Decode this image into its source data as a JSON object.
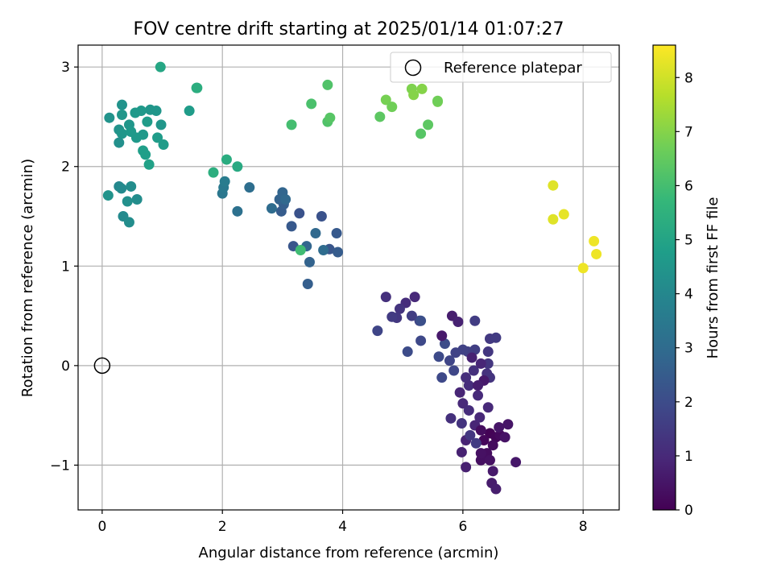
{
  "chart_data": {
    "type": "scatter",
    "title": "FOV centre drift starting at 2025/01/14 01:07:27",
    "xlabel": "Angular distance from reference (arcmin)",
    "ylabel": "Rotation from reference (arcmin)",
    "xlim": [
      -0.4,
      8.6
    ],
    "ylim": [
      -1.45,
      3.22
    ],
    "xticks": [
      0,
      2,
      4,
      6,
      8
    ],
    "xtick_labels": [
      "0",
      "2",
      "4",
      "6",
      "8"
    ],
    "yticks": [
      -1,
      0,
      1,
      2,
      3
    ],
    "ytick_labels": [
      "−1",
      "0",
      "1",
      "2",
      "3"
    ],
    "grid": true,
    "legend": {
      "position": "upper-right",
      "entries": [
        {
          "label": "Reference platepar",
          "marker": "hollow-circle",
          "color": "#000000"
        }
      ]
    },
    "reference_point": {
      "x": 0,
      "y": 0
    },
    "colorbar": {
      "label": "Hours from first FF file",
      "colormap": "viridis",
      "range": [
        0,
        8.6
      ],
      "ticks": [
        0,
        1,
        2,
        3,
        4,
        5,
        6,
        7,
        8
      ],
      "tick_labels": [
        "0",
        "1",
        "2",
        "3",
        "4",
        "5",
        "6",
        "7",
        "8"
      ]
    },
    "colormap_stops": [
      "#440154",
      "#482878",
      "#3e4989",
      "#31688e",
      "#26828e",
      "#1f9e89",
      "#35b779",
      "#6ece58",
      "#b5de2b",
      "#fde725"
    ],
    "points": [
      {
        "x": 6.45,
        "y": -0.68,
        "c": 0.05
      },
      {
        "x": 6.55,
        "y": -0.72,
        "c": 0.1
      },
      {
        "x": 6.35,
        "y": -0.75,
        "c": 0.15
      },
      {
        "x": 6.62,
        "y": -0.7,
        "c": 0.2
      },
      {
        "x": 6.5,
        "y": -0.8,
        "c": 0.25
      },
      {
        "x": 6.4,
        "y": -0.88,
        "c": 0.3
      },
      {
        "x": 6.3,
        "y": -0.95,
        "c": 0.35
      },
      {
        "x": 6.45,
        "y": -0.95,
        "c": 0.4
      },
      {
        "x": 6.7,
        "y": -0.72,
        "c": 0.45
      },
      {
        "x": 6.75,
        "y": -0.59,
        "c": 0.5
      },
      {
        "x": 6.88,
        "y": -0.97,
        "c": 0.55
      },
      {
        "x": 6.5,
        "y": -1.06,
        "c": 0.6
      },
      {
        "x": 6.48,
        "y": -1.18,
        "c": 0.65
      },
      {
        "x": 6.55,
        "y": -1.24,
        "c": 0.7
      },
      {
        "x": 6.05,
        "y": -1.02,
        "c": 0.75
      },
      {
        "x": 5.98,
        "y": -0.87,
        "c": 0.8
      },
      {
        "x": 6.05,
        "y": -0.75,
        "c": 0.85
      },
      {
        "x": 6.2,
        "y": -0.6,
        "c": 0.9
      },
      {
        "x": 6.28,
        "y": -0.52,
        "c": 0.95
      },
      {
        "x": 6.42,
        "y": -0.42,
        "c": 1.0
      },
      {
        "x": 6.25,
        "y": -0.3,
        "c": 1.05
      },
      {
        "x": 6.1,
        "y": -0.2,
        "c": 1.1
      },
      {
        "x": 6.05,
        "y": -0.12,
        "c": 1.15
      },
      {
        "x": 6.18,
        "y": -0.05,
        "c": 1.2
      },
      {
        "x": 6.4,
        "y": -0.08,
        "c": 1.25
      },
      {
        "x": 6.45,
        "y": -0.12,
        "c": 1.3
      },
      {
        "x": 6.42,
        "y": 0.02,
        "c": 1.35
      },
      {
        "x": 6.42,
        "y": 0.14,
        "c": 1.4
      },
      {
        "x": 6.45,
        "y": 0.27,
        "c": 1.45
      },
      {
        "x": 6.55,
        "y": 0.28,
        "c": 1.5
      },
      {
        "x": 6.2,
        "y": 0.45,
        "c": 1.55
      },
      {
        "x": 6.2,
        "y": 0.16,
        "c": 1.6
      },
      {
        "x": 6.08,
        "y": 0.14,
        "c": 1.65
      },
      {
        "x": 6.0,
        "y": 0.16,
        "c": 1.7
      },
      {
        "x": 5.88,
        "y": 0.13,
        "c": 1.75
      },
      {
        "x": 5.78,
        "y": 0.05,
        "c": 1.8
      },
      {
        "x": 5.85,
        "y": -0.05,
        "c": 1.85
      },
      {
        "x": 5.65,
        "y": -0.12,
        "c": 1.9
      },
      {
        "x": 5.6,
        "y": 0.09,
        "c": 1.95
      },
      {
        "x": 5.7,
        "y": 0.22,
        "c": 2.0
      },
      {
        "x": 5.65,
        "y": 0.3,
        "c": 0.6
      },
      {
        "x": 5.82,
        "y": 0.5,
        "c": 0.7
      },
      {
        "x": 5.92,
        "y": 0.44,
        "c": 0.8
      },
      {
        "x": 5.95,
        "y": -0.27,
        "c": 0.9
      },
      {
        "x": 6.0,
        "y": -0.38,
        "c": 1.0
      },
      {
        "x": 6.1,
        "y": -0.45,
        "c": 1.1
      },
      {
        "x": 5.8,
        "y": -0.53,
        "c": 1.2
      },
      {
        "x": 5.98,
        "y": -0.58,
        "c": 1.3
      },
      {
        "x": 6.12,
        "y": -0.7,
        "c": 1.4
      },
      {
        "x": 6.22,
        "y": -0.78,
        "c": 1.5
      },
      {
        "x": 6.3,
        "y": -0.65,
        "c": 0.3
      },
      {
        "x": 6.3,
        "y": -0.88,
        "c": 0.4
      },
      {
        "x": 6.6,
        "y": -0.62,
        "c": 0.5
      },
      {
        "x": 6.35,
        "y": -0.15,
        "c": 0.6
      },
      {
        "x": 6.25,
        "y": -0.2,
        "c": 0.7
      },
      {
        "x": 6.15,
        "y": 0.08,
        "c": 0.8
      },
      {
        "x": 6.3,
        "y": 0.02,
        "c": 0.9
      },
      {
        "x": 5.2,
        "y": 0.69,
        "c": 1.0
      },
      {
        "x": 5.05,
        "y": 0.63,
        "c": 1.1
      },
      {
        "x": 4.72,
        "y": 0.69,
        "c": 1.2
      },
      {
        "x": 4.95,
        "y": 0.57,
        "c": 1.3
      },
      {
        "x": 4.9,
        "y": 0.48,
        "c": 1.4
      },
      {
        "x": 4.82,
        "y": 0.49,
        "c": 1.5
      },
      {
        "x": 5.15,
        "y": 0.5,
        "c": 1.6
      },
      {
        "x": 5.28,
        "y": 0.45,
        "c": 1.7
      },
      {
        "x": 4.58,
        "y": 0.35,
        "c": 1.8
      },
      {
        "x": 5.3,
        "y": 0.25,
        "c": 1.9
      },
      {
        "x": 5.08,
        "y": 0.14,
        "c": 2.0
      },
      {
        "x": 5.3,
        "y": 0.45,
        "c": 2.1
      },
      {
        "x": 3.65,
        "y": 1.5,
        "c": 2.2
      },
      {
        "x": 3.78,
        "y": 1.17,
        "c": 2.3
      },
      {
        "x": 3.9,
        "y": 1.33,
        "c": 2.4
      },
      {
        "x": 3.92,
        "y": 1.14,
        "c": 2.5
      },
      {
        "x": 3.42,
        "y": 0.82,
        "c": 2.6
      },
      {
        "x": 3.45,
        "y": 1.04,
        "c": 2.7
      },
      {
        "x": 3.4,
        "y": 1.2,
        "c": 2.8
      },
      {
        "x": 3.55,
        "y": 1.33,
        "c": 2.9
      },
      {
        "x": 3.68,
        "y": 1.16,
        "c": 3.0
      },
      {
        "x": 3.28,
        "y": 1.53,
        "c": 2.2
      },
      {
        "x": 3.18,
        "y": 1.2,
        "c": 2.3
      },
      {
        "x": 3.15,
        "y": 1.4,
        "c": 2.4
      },
      {
        "x": 2.98,
        "y": 1.55,
        "c": 2.5
      },
      {
        "x": 3.02,
        "y": 1.62,
        "c": 2.6
      },
      {
        "x": 2.95,
        "y": 1.67,
        "c": 2.7
      },
      {
        "x": 3.0,
        "y": 1.74,
        "c": 2.8
      },
      {
        "x": 3.05,
        "y": 1.67,
        "c": 2.9
      },
      {
        "x": 2.82,
        "y": 1.58,
        "c": 3.0
      },
      {
        "x": 2.45,
        "y": 1.79,
        "c": 3.1
      },
      {
        "x": 2.25,
        "y": 1.55,
        "c": 3.2
      },
      {
        "x": 3.3,
        "y": 1.16,
        "c": 5.9
      },
      {
        "x": 2.0,
        "y": 1.73,
        "c": 3.4
      },
      {
        "x": 2.02,
        "y": 1.79,
        "c": 3.5
      },
      {
        "x": 2.04,
        "y": 1.85,
        "c": 3.6
      },
      {
        "x": 2.25,
        "y": 2.0,
        "c": 5.2
      },
      {
        "x": 2.07,
        "y": 2.07,
        "c": 5.3
      },
      {
        "x": 1.85,
        "y": 1.94,
        "c": 5.4
      },
      {
        "x": 1.57,
        "y": 2.79,
        "c": 5.3
      },
      {
        "x": 1.58,
        "y": 2.79,
        "c": 5.35
      },
      {
        "x": 0.97,
        "y": 3.0,
        "c": 5.1
      },
      {
        "x": 1.45,
        "y": 2.56,
        "c": 4.7
      },
      {
        "x": 0.98,
        "y": 2.42,
        "c": 4.5
      },
      {
        "x": 0.9,
        "y": 2.56,
        "c": 4.5
      },
      {
        "x": 0.8,
        "y": 2.57,
        "c": 4.5
      },
      {
        "x": 0.65,
        "y": 2.56,
        "c": 4.6
      },
      {
        "x": 0.55,
        "y": 2.54,
        "c": 4.6
      },
      {
        "x": 0.33,
        "y": 2.62,
        "c": 4.4
      },
      {
        "x": 0.33,
        "y": 2.52,
        "c": 4.5
      },
      {
        "x": 0.12,
        "y": 2.49,
        "c": 4.4
      },
      {
        "x": 0.28,
        "y": 2.37,
        "c": 4.4
      },
      {
        "x": 0.33,
        "y": 2.33,
        "c": 4.5
      },
      {
        "x": 0.45,
        "y": 2.42,
        "c": 4.5
      },
      {
        "x": 0.48,
        "y": 2.35,
        "c": 4.6
      },
      {
        "x": 0.57,
        "y": 2.29,
        "c": 4.6
      },
      {
        "x": 0.68,
        "y": 2.32,
        "c": 4.6
      },
      {
        "x": 0.75,
        "y": 2.45,
        "c": 4.7
      },
      {
        "x": 0.92,
        "y": 2.29,
        "c": 4.7
      },
      {
        "x": 1.02,
        "y": 2.22,
        "c": 4.7
      },
      {
        "x": 0.28,
        "y": 2.24,
        "c": 4.3
      },
      {
        "x": 0.68,
        "y": 2.16,
        "c": 4.8
      },
      {
        "x": 0.72,
        "y": 2.12,
        "c": 4.8
      },
      {
        "x": 0.78,
        "y": 2.02,
        "c": 4.9
      },
      {
        "x": 0.28,
        "y": 1.8,
        "c": 4.0
      },
      {
        "x": 0.32,
        "y": 1.78,
        "c": 4.1
      },
      {
        "x": 0.48,
        "y": 1.8,
        "c": 4.2
      },
      {
        "x": 0.58,
        "y": 1.67,
        "c": 4.2
      },
      {
        "x": 0.42,
        "y": 1.65,
        "c": 4.3
      },
      {
        "x": 0.1,
        "y": 1.71,
        "c": 4.4
      },
      {
        "x": 0.35,
        "y": 1.5,
        "c": 4.1
      },
      {
        "x": 0.45,
        "y": 1.44,
        "c": 4.2
      },
      {
        "x": 3.15,
        "y": 2.42,
        "c": 6.0
      },
      {
        "x": 3.48,
        "y": 2.63,
        "c": 6.1
      },
      {
        "x": 3.75,
        "y": 2.82,
        "c": 6.2
      },
      {
        "x": 3.75,
        "y": 2.45,
        "c": 6.2
      },
      {
        "x": 3.79,
        "y": 2.49,
        "c": 6.3
      },
      {
        "x": 4.62,
        "y": 2.5,
        "c": 6.4
      },
      {
        "x": 4.72,
        "y": 2.67,
        "c": 6.8
      },
      {
        "x": 4.82,
        "y": 2.6,
        "c": 6.7
      },
      {
        "x": 5.15,
        "y": 2.78,
        "c": 6.9
      },
      {
        "x": 5.18,
        "y": 2.72,
        "c": 7.0
      },
      {
        "x": 5.32,
        "y": 2.78,
        "c": 7.0
      },
      {
        "x": 5.58,
        "y": 2.65,
        "c": 6.8
      },
      {
        "x": 5.58,
        "y": 2.66,
        "c": 6.7
      },
      {
        "x": 5.42,
        "y": 2.42,
        "c": 6.4
      },
      {
        "x": 5.3,
        "y": 2.33,
        "c": 6.3
      },
      {
        "x": 7.5,
        "y": 1.81,
        "c": 8.2
      },
      {
        "x": 7.5,
        "y": 1.47,
        "c": 8.2
      },
      {
        "x": 7.68,
        "y": 1.52,
        "c": 8.3
      },
      {
        "x": 8.18,
        "y": 1.25,
        "c": 8.4
      },
      {
        "x": 8.22,
        "y": 1.12,
        "c": 8.4
      },
      {
        "x": 8.0,
        "y": 0.98,
        "c": 8.4
      }
    ]
  }
}
